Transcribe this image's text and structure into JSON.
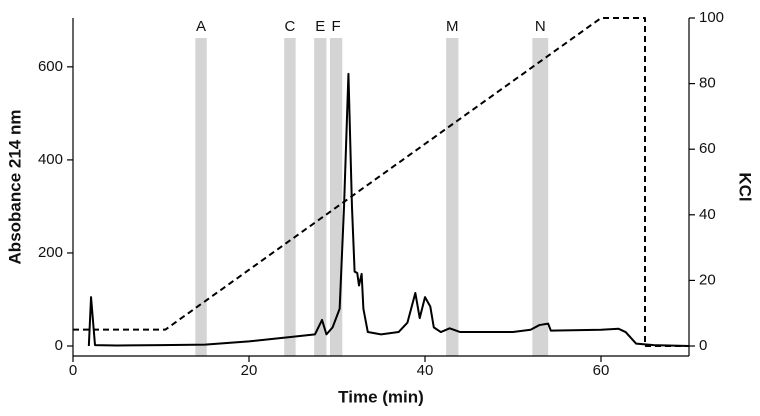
{
  "chart_data": {
    "type": "line",
    "x_label": "Time (min)",
    "y_label": "Absobance 214 nm",
    "y2_label": "KCl",
    "xlim": [
      0,
      70
    ],
    "xticks": [
      0,
      20,
      40,
      60
    ],
    "ylim": [
      0,
      705
    ],
    "yticks": [
      0,
      200,
      400,
      600
    ],
    "y2lim": [
      0,
      100
    ],
    "y2ticks": [
      0,
      20,
      40,
      60,
      80,
      100
    ],
    "regions": [
      {
        "label": "A",
        "x": [
          13.9,
          15.2
        ]
      },
      {
        "label": "C",
        "x": [
          24.0,
          25.3
        ]
      },
      {
        "label": "E",
        "x": [
          27.4,
          28.8
        ]
      },
      {
        "label": "F",
        "x": [
          29.2,
          30.6
        ]
      },
      {
        "label": "M",
        "x": [
          42.4,
          43.8
        ]
      },
      {
        "label": "N",
        "x": [
          52.2,
          54.0
        ]
      }
    ],
    "region_color": "#d4d4d4",
    "series": [
      {
        "color": "#000000",
        "dash": false,
        "x": [
          1.8,
          2.05,
          2.5,
          5,
          10,
          15,
          20,
          25,
          27.5,
          28.3,
          28.8,
          29.5,
          30.3,
          30.8,
          31.3,
          31.7,
          32.0,
          32.3,
          32.5,
          32.8,
          33.0,
          33.5,
          35,
          37,
          38,
          38.9,
          39.4,
          40.0,
          40.6,
          41.0,
          41.8,
          42.8,
          44,
          50,
          52,
          53,
          54,
          54.3,
          60,
          62,
          62.8,
          64,
          66,
          70
        ],
        "values": [
          0,
          105,
          2,
          1,
          2,
          3,
          10,
          20,
          25,
          56,
          25,
          40,
          80,
          300,
          585,
          300,
          160,
          157,
          130,
          155,
          80,
          30,
          25,
          30,
          50,
          114,
          60,
          105,
          85,
          40,
          30,
          38,
          30,
          30,
          35,
          45,
          48,
          33,
          35,
          37,
          30,
          5,
          2,
          0
        ]
      },
      {
        "color": "#000000",
        "dash": true,
        "axis": "y2",
        "x": [
          0,
          10.5,
          60,
          65,
          65,
          70
        ],
        "values": [
          5,
          5,
          100,
          100,
          0,
          0
        ]
      }
    ]
  }
}
